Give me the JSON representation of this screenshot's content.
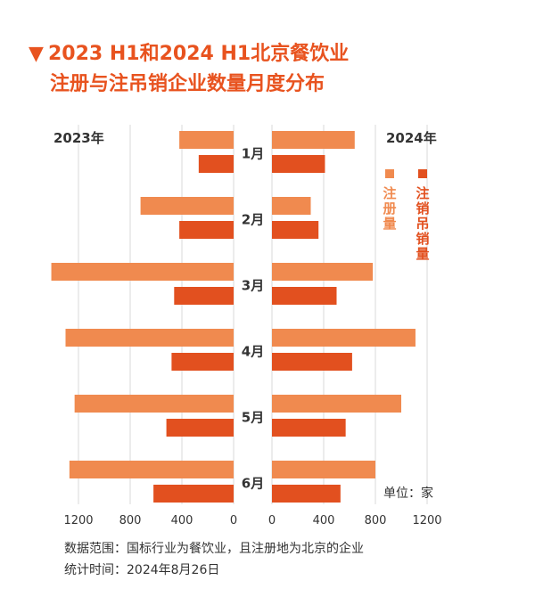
{
  "title_line1": "2023 H1和2024 H1北京餐饮业",
  "title_line2": "注册与注吊销企业数量月度分布",
  "title_marker": "▼",
  "colors": {
    "registered": "#f08a4f",
    "deregistered": "#e2501f",
    "title": "#e8531f",
    "grid": "#d9d9d9",
    "text": "#333333"
  },
  "footnote_line1": "数据范围：国标行业为餐饮业，且注册地为北京的企业",
  "footnote_line2": "统计时间：2024年8月26日",
  "chart_data": {
    "type": "bar",
    "orientation": "horizontal-butterfly",
    "categories": [
      "1月",
      "2月",
      "3月",
      "4月",
      "5月",
      "6月"
    ],
    "left_panel_label": "2023年",
    "right_panel_label": "2024年",
    "unit": "单位：家",
    "legend": [
      {
        "name": "注册量",
        "color": "#f08a4f",
        "position": "top-right"
      },
      {
        "name": "注销吊销量",
        "color": "#e2501f",
        "position": "top-right"
      }
    ],
    "series": [
      {
        "name": "注册量",
        "year": "2023年",
        "values": [
          420,
          720,
          1410,
          1300,
          1230,
          1270
        ]
      },
      {
        "name": "注销吊销量",
        "year": "2023年",
        "values": [
          270,
          420,
          460,
          480,
          520,
          620
        ]
      },
      {
        "name": "注册量",
        "year": "2024年",
        "values": [
          640,
          300,
          780,
          1110,
          1000,
          800
        ]
      },
      {
        "name": "注销吊销量",
        "year": "2024年",
        "values": [
          410,
          360,
          500,
          620,
          570,
          530
        ]
      }
    ],
    "left_ticks": [
      "1200",
      "800",
      "400",
      "0"
    ],
    "right_ticks": [
      "0",
      "400",
      "800",
      "1200"
    ],
    "xlim": [
      0,
      1400
    ],
    "grid": true
  }
}
